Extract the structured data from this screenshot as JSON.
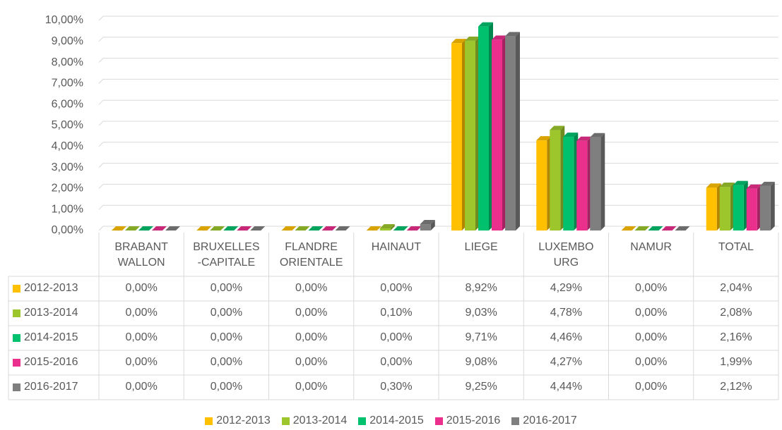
{
  "chart_data": {
    "type": "bar3d",
    "categories": [
      "BRABANT\nWALLON",
      "BRUXELLES\n-CAPITALE",
      "FLANDRE\nORIENTALE",
      "HAINAUT",
      "LIEGE",
      "LUXEMBO\nURG",
      "NAMUR",
      "TOTAL"
    ],
    "series": [
      {
        "name": "2012-2013",
        "color": "#ffc000",
        "values": [
          0,
          0,
          0,
          0,
          8.92,
          4.29,
          0,
          2.04
        ],
        "value_labels": [
          "0,00%",
          "0,00%",
          "0,00%",
          "0,00%",
          "8,92%",
          "4,29%",
          "0,00%",
          "2,04%"
        ]
      },
      {
        "name": "2013-2014",
        "color": "#9dc62d",
        "values": [
          0,
          0,
          0,
          0.1,
          9.03,
          4.78,
          0,
          2.08
        ],
        "value_labels": [
          "0,00%",
          "0,00%",
          "0,00%",
          "0,10%",
          "9,03%",
          "4,78%",
          "0,00%",
          "2,08%"
        ]
      },
      {
        "name": "2014-2015",
        "color": "#00c16e",
        "values": [
          0,
          0,
          0,
          0,
          9.71,
          4.46,
          0,
          2.16
        ],
        "value_labels": [
          "0,00%",
          "0,00%",
          "0,00%",
          "0,00%",
          "9,71%",
          "4,46%",
          "0,00%",
          "2,16%"
        ]
      },
      {
        "name": "2015-2016",
        "color": "#ea2f8c",
        "values": [
          0,
          0,
          0,
          0,
          9.08,
          4.27,
          0,
          1.99
        ],
        "value_labels": [
          "0,00%",
          "0,00%",
          "0,00%",
          "0,00%",
          "9,08%",
          "4,27%",
          "0,00%",
          "1,99%"
        ]
      },
      {
        "name": "2016-2017",
        "color": "#7f7f7f",
        "values": [
          0,
          0,
          0,
          0.3,
          9.25,
          4.44,
          0,
          2.12
        ],
        "value_labels": [
          "0,00%",
          "0,00%",
          "0,00%",
          "0,30%",
          "9,25%",
          "4,44%",
          "0,00%",
          "2,12%"
        ]
      }
    ],
    "ylim": [
      0,
      10
    ],
    "yticks": [
      {
        "value": 0,
        "label": "0,00%"
      },
      {
        "value": 1,
        "label": "1,00%"
      },
      {
        "value": 2,
        "label": "2,00%"
      },
      {
        "value": 3,
        "label": "3,00%"
      },
      {
        "value": 4,
        "label": "4,00%"
      },
      {
        "value": 5,
        "label": "5,00%"
      },
      {
        "value": 6,
        "label": "6,00%"
      },
      {
        "value": 7,
        "label": "7,00%"
      },
      {
        "value": 8,
        "label": "8,00%"
      },
      {
        "value": 9,
        "label": "9,00%"
      },
      {
        "value": 10,
        "label": "10,00%"
      }
    ],
    "grid": true
  }
}
